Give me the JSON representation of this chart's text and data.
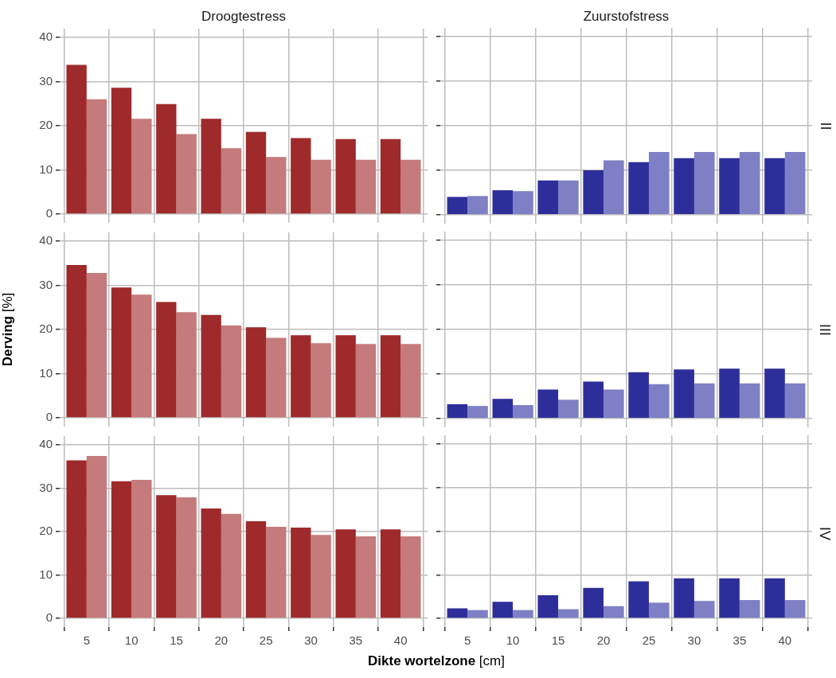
{
  "chart_data": [
    {
      "type": "bar",
      "title": "Droogtestress",
      "x": [
        5,
        10,
        15,
        20,
        25,
        30,
        35,
        40
      ],
      "xlim": [
        2,
        43
      ],
      "xticks": [
        5,
        10,
        15,
        20,
        25,
        30,
        35,
        40
      ],
      "ylim": [
        -2,
        42
      ],
      "yticks": [
        0,
        10,
        20,
        30,
        40
      ],
      "grid": true,
      "legend": false,
      "tick_labels": "y",
      "series": [
        {
          "color": "#9e2a2b",
          "values": [
            33.8,
            28.6,
            24.9,
            21.6,
            18.6,
            17.2,
            17.0,
            17.0
          ]
        },
        {
          "color": "#c57a7b",
          "values": [
            26.0,
            21.6,
            18.1,
            14.9,
            12.9,
            12.3,
            12.3,
            12.3
          ]
        }
      ]
    },
    {
      "type": "bar",
      "title": "Zuurstofstress",
      "annotations": [
        "II"
      ],
      "x": [
        5,
        10,
        15,
        20,
        25,
        30,
        35,
        40
      ],
      "xlim": [
        2,
        43
      ],
      "xticks": [
        5,
        10,
        15,
        20,
        25,
        30,
        35,
        40
      ],
      "ylim": [
        -2,
        42
      ],
      "yticks": [
        0,
        10,
        20,
        30,
        40
      ],
      "grid": true,
      "legend": false,
      "tick_labels": false,
      "series": [
        {
          "color": "#2e2e9b",
          "values": [
            4.0,
            5.5,
            7.7,
            10.0,
            11.8,
            12.7,
            12.7,
            12.7
          ]
        },
        {
          "color": "#7f7fc5",
          "values": [
            4.2,
            5.3,
            7.7,
            12.2,
            14.1,
            14.1,
            14.1,
            14.1
          ]
        }
      ]
    },
    {
      "type": "bar",
      "ylabel": "Derving [%]",
      "x": [
        5,
        10,
        15,
        20,
        25,
        30,
        35,
        40
      ],
      "xlim": [
        2,
        43
      ],
      "xticks": [
        5,
        10,
        15,
        20,
        25,
        30,
        35,
        40
      ],
      "ylim": [
        -2,
        42
      ],
      "yticks": [
        0,
        10,
        20,
        30,
        40
      ],
      "grid": true,
      "legend": false,
      "tick_labels": "y",
      "series": [
        {
          "color": "#9e2a2b",
          "values": [
            34.6,
            29.5,
            26.2,
            23.3,
            20.5,
            18.7,
            18.7,
            18.7
          ]
        },
        {
          "color": "#c57a7b",
          "values": [
            32.8,
            27.9,
            23.9,
            20.9,
            18.1,
            16.9,
            16.7,
            16.7
          ]
        }
      ]
    },
    {
      "type": "bar",
      "annotations": [
        "III"
      ],
      "x": [
        5,
        10,
        15,
        20,
        25,
        30,
        35,
        40
      ],
      "xlim": [
        2,
        43
      ],
      "xticks": [
        5,
        10,
        15,
        20,
        25,
        30,
        35,
        40
      ],
      "ylim": [
        -2,
        42
      ],
      "yticks": [
        0,
        10,
        20,
        30,
        40
      ],
      "grid": true,
      "legend": false,
      "tick_labels": false,
      "series": [
        {
          "color": "#2e2e9b",
          "values": [
            3.2,
            4.4,
            6.5,
            8.3,
            10.4,
            11.0,
            11.2,
            11.2
          ]
        },
        {
          "color": "#7f7fc5",
          "values": [
            2.8,
            3.0,
            4.2,
            6.5,
            7.7,
            7.9,
            7.9,
            7.9
          ]
        }
      ]
    },
    {
      "type": "bar",
      "xlabel": "Dikte wortelzone [cm]",
      "x": [
        5,
        10,
        15,
        20,
        25,
        30,
        35,
        40
      ],
      "xlim": [
        2,
        43
      ],
      "xticks": [
        5,
        10,
        15,
        20,
        25,
        30,
        35,
        40
      ],
      "ylim": [
        -2,
        42
      ],
      "yticks": [
        0,
        10,
        20,
        30,
        40
      ],
      "grid": true,
      "legend": false,
      "series": [
        {
          "color": "#9e2a2b",
          "values": [
            36.4,
            31.6,
            28.4,
            25.3,
            22.4,
            20.9,
            20.5,
            20.5
          ]
        },
        {
          "color": "#c57a7b",
          "values": [
            37.4,
            31.9,
            27.9,
            24.1,
            21.1,
            19.2,
            18.9,
            18.9
          ]
        }
      ]
    },
    {
      "type": "bar",
      "annotations": [
        "IV"
      ],
      "x": [
        5,
        10,
        15,
        20,
        25,
        30,
        35,
        40
      ],
      "xlim": [
        2,
        43
      ],
      "xticks": [
        5,
        10,
        15,
        20,
        25,
        30,
        35,
        40
      ],
      "ylim": [
        -2,
        42
      ],
      "yticks": [
        0,
        10,
        20,
        30,
        40
      ],
      "grid": true,
      "legend": false,
      "tick_labels": "x",
      "series": [
        {
          "color": "#2e2e9b",
          "values": [
            2.3,
            3.8,
            5.3,
            7.0,
            8.5,
            9.2,
            9.2,
            9.2
          ]
        },
        {
          "color": "#7f7fc5",
          "values": [
            1.9,
            1.9,
            2.1,
            2.8,
            3.6,
            4.0,
            4.2,
            4.2
          ]
        }
      ]
    }
  ]
}
